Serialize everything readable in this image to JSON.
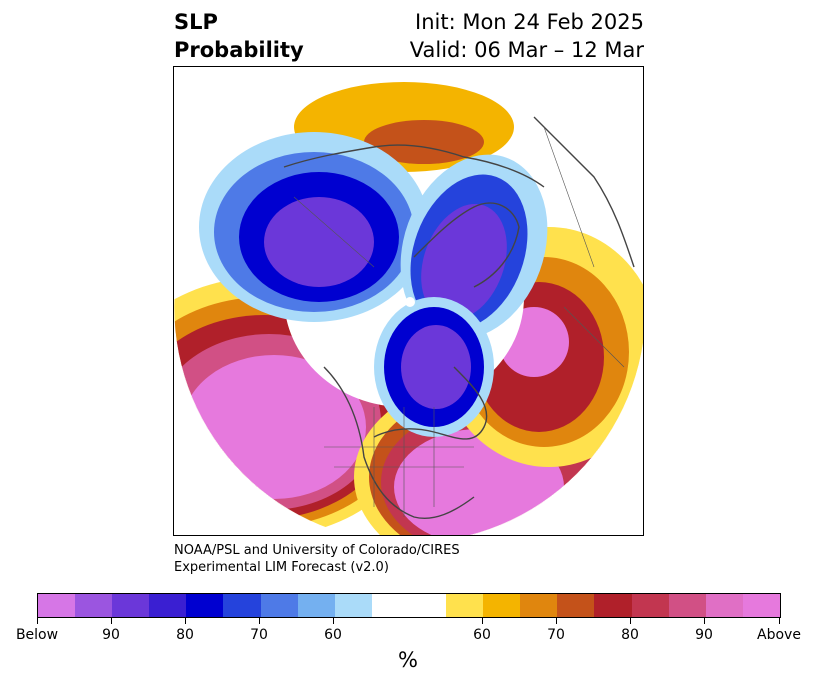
{
  "title": {
    "left_line1": "SLP",
    "left_line2": "Probability",
    "right_line1": "Init: Mon 24 Feb 2025",
    "right_line2": "Valid: 06 Mar – 12 Mar"
  },
  "credit": {
    "line1": "NOAA/PSL and University of Colorado/CIRES",
    "line2": "Experimental LIM Forecast (v2.0)"
  },
  "colorbar": {
    "colors": [
      "#d676e6",
      "#9b55e0",
      "#6b37d9",
      "#3a1fd2",
      "#0000d0",
      "#2543dc",
      "#4e7ae7",
      "#74b0f0",
      "#aadbf9",
      "#ffffff",
      "#ffffff",
      "#ffe14d",
      "#f4b400",
      "#e0860e",
      "#c4521a",
      "#b0202a",
      "#c23650",
      "#d15085",
      "#e06fc5",
      "#e679dd"
    ],
    "tick_labels": [
      "Below",
      "90",
      "80",
      "70",
      "60",
      "60",
      "70",
      "80",
      "90",
      "Above"
    ],
    "unit": "%"
  },
  "map": {
    "projection": "north-polar-stereographic",
    "below_normal_color": "#3a1fd2",
    "above_normal_color": "#e679dd"
  }
}
